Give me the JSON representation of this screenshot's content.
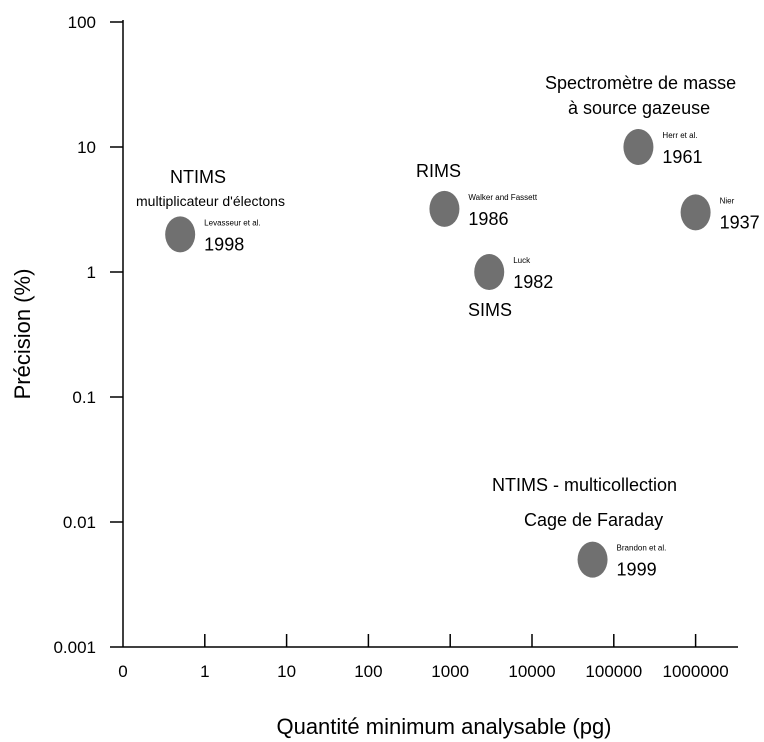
{
  "chart_data": {
    "type": "scatter",
    "xlabel": "Quantité minimum analysable (pg)",
    "ylabel": "Précision (%)",
    "x_scale": "log",
    "y_scale": "log",
    "xticks": [
      "0",
      "1",
      "10",
      "100",
      "1000",
      "10000",
      "100000",
      "1000000"
    ],
    "yticks": [
      "100",
      "10",
      "1",
      "0.1",
      "0.01",
      "0.001"
    ],
    "xlim": [
      0.1,
      10000000
    ],
    "ylim": [
      0.001,
      100
    ],
    "grid": false,
    "point_color": "#707070",
    "points": [
      {
        "id": "levasseur",
        "x": 0.5,
        "y": 2,
        "ref": "Levasseur et al.",
        "year": "1998"
      },
      {
        "id": "walker",
        "x": 850,
        "y": 3.2,
        "ref": "Walker and Fassett",
        "year": "1986"
      },
      {
        "id": "luck",
        "x": 3000,
        "y": 1,
        "ref": "Luck",
        "year": "1982"
      },
      {
        "id": "herr",
        "x": 200000,
        "y": 10,
        "ref": "Herr et al.",
        "year": "1961"
      },
      {
        "id": "nier",
        "x": 1000000,
        "y": 3,
        "ref": "Nier",
        "year": "1937"
      },
      {
        "id": "brandon",
        "x": 55000,
        "y": 0.005,
        "ref": "Brandon et al.",
        "year": "1999"
      }
    ],
    "group_labels": [
      {
        "id": "ntims-title",
        "text": "NTIMS"
      },
      {
        "id": "ntims-sub",
        "text": "multiplicateur d'électons"
      },
      {
        "id": "rims",
        "text": "RIMS"
      },
      {
        "id": "sims",
        "text": "SIMS"
      },
      {
        "id": "gas-1",
        "text": "Spectromètre de masse"
      },
      {
        "id": "gas-2",
        "text": "à source gazeuse"
      },
      {
        "id": "multi-1",
        "text": "NTIMS - multicollection"
      },
      {
        "id": "multi-2",
        "text": "Cage de Faraday"
      }
    ]
  }
}
